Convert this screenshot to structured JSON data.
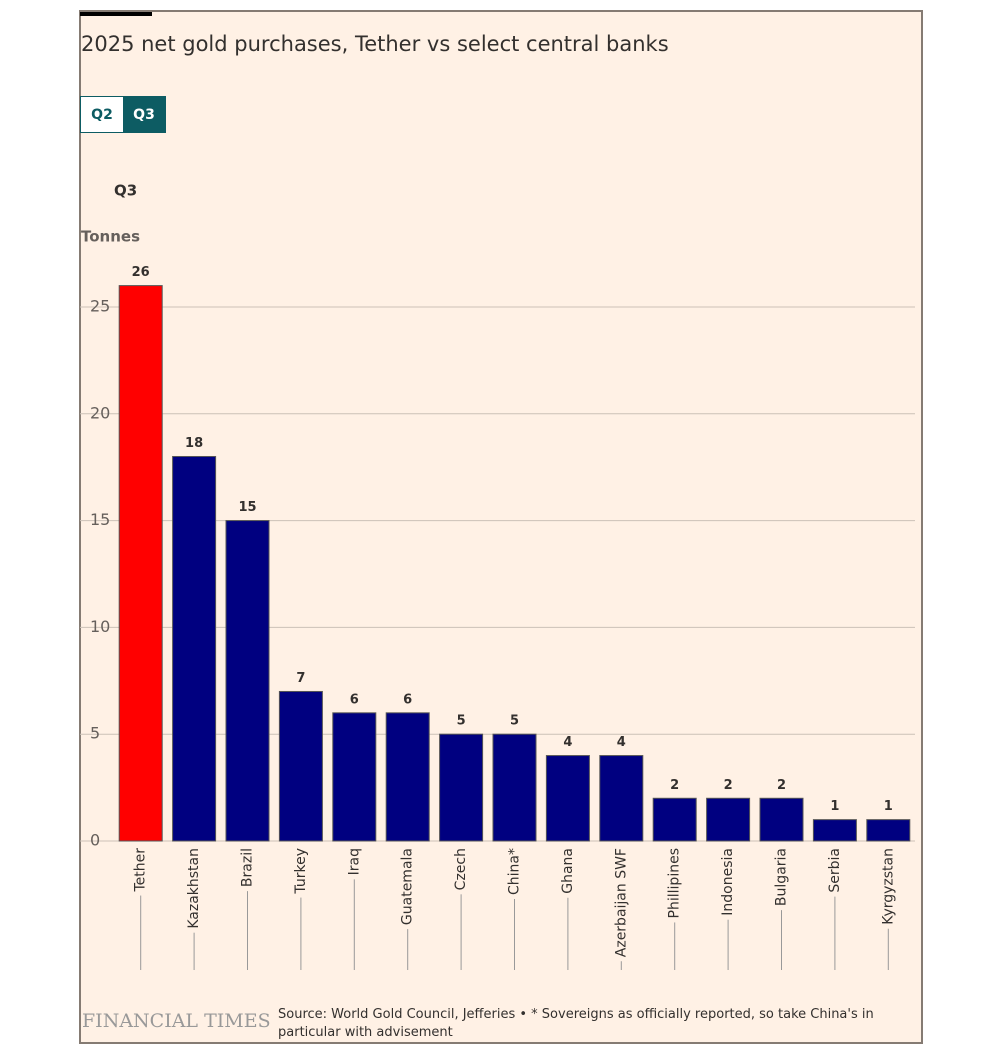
{
  "chart_data": {
    "type": "bar",
    "title": "2025 net gold purchases, Tether vs select central banks",
    "tabs": [
      "Q2",
      "Q3"
    ],
    "subtitle": "Q3",
    "ylabel": "Tonnes",
    "categories": [
      "Tether",
      "Kazakhstan",
      "Brazil",
      "Turkey",
      "Iraq",
      "Guatemala",
      "Czech",
      "China*",
      "Ghana",
      "Azerbaijan SWF",
      "Phillipines",
      "Indonesia",
      "Bulgaria",
      "Serbia",
      "Kyrgyzstan"
    ],
    "values": [
      26,
      18,
      15,
      7,
      6,
      6,
      5,
      5,
      4,
      4,
      2,
      2,
      2,
      1,
      1
    ],
    "colors": [
      "#ff0000",
      "#000080",
      "#000080",
      "#000080",
      "#000080",
      "#000080",
      "#000080",
      "#000080",
      "#000080",
      "#000080",
      "#000080",
      "#000080",
      "#000080",
      "#000080",
      "#000080"
    ],
    "ylim": [
      0,
      26
    ],
    "yticks": [
      0,
      5,
      10,
      15,
      20,
      25
    ],
    "grid": true,
    "brand": "FINANCIAL TIMES",
    "source": "Source: World Gold Council, Jefferies • * Sovereigns as officially reported, so take China's in particular with advisement"
  }
}
